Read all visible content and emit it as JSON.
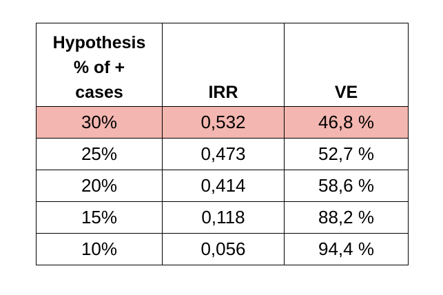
{
  "table": {
    "headers": [
      "Hypothesis\n% of +\ncases",
      "IRR",
      "VE"
    ],
    "highlight_color": "#f4b6b0",
    "rows": [
      {
        "hypothesis": "30%",
        "irr": "0,532",
        "ve": "46,8 %",
        "highlighted": true
      },
      {
        "hypothesis": "25%",
        "irr": "0,473",
        "ve": "52,7 %",
        "highlighted": false
      },
      {
        "hypothesis": "20%",
        "irr": "0,414",
        "ve": "58,6 %",
        "highlighted": false
      },
      {
        "hypothesis": "15%",
        "irr": "0,118",
        "ve": "88,2 %",
        "highlighted": false
      },
      {
        "hypothesis": "10%",
        "irr": "0,056",
        "ve": "94,4 %",
        "highlighted": false
      }
    ]
  }
}
